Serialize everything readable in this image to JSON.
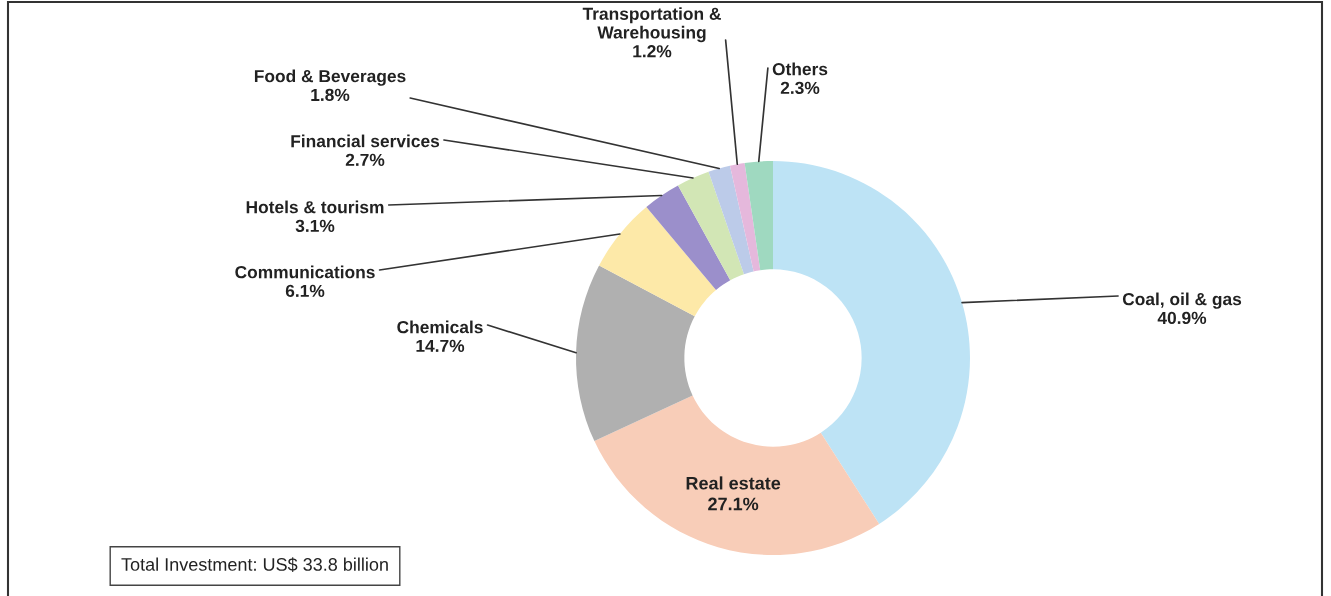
{
  "chart_data": {
    "type": "donut",
    "categories": [
      "Coal, oil & gas",
      "Real estate",
      "Chemicals",
      "Communications",
      "Hotels & tourism",
      "Financial services",
      "Food & Beverages",
      "Transportation &\nWarehousing",
      "Others"
    ],
    "values": [
      40.9,
      27.1,
      14.7,
      6.1,
      3.1,
      2.7,
      1.8,
      1.2,
      2.3
    ],
    "value_labels": [
      "40.9%",
      "27.1%",
      "14.7%",
      "6.1%",
      "3.1%",
      "2.7%",
      "1.8%",
      "1.2%",
      "2.3%"
    ],
    "colors": [
      "#bde3f5",
      "#f8cdb8",
      "#b0b0b0",
      "#fde9a8",
      "#9b8fcb",
      "#d2e6b5",
      "#bccbe9",
      "#e5b8dc",
      "#9fd9c0"
    ],
    "annotations": [
      "Total Investment: US$ 33.8 billion"
    ]
  }
}
